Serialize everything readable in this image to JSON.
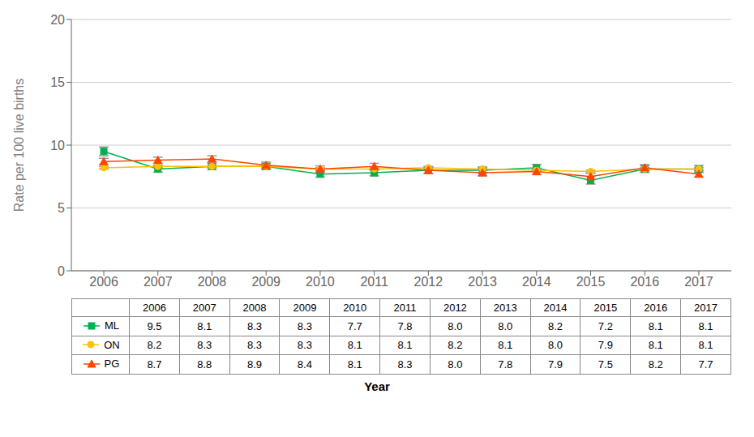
{
  "chart_data": {
    "type": "line",
    "xlabel": "Year",
    "ylabel": "Rate per 100 live births",
    "x": [
      2006,
      2007,
      2008,
      2009,
      2010,
      2011,
      2012,
      2013,
      2014,
      2015,
      2016,
      2017
    ],
    "xlim": [
      2005.4,
      2017.6
    ],
    "xticks": [
      2006,
      2007,
      2008,
      2009,
      2010,
      2011,
      2012,
      2013,
      2014,
      2015,
      2016,
      2017
    ],
    "ylim": [
      0,
      20
    ],
    "yticks": [
      0,
      5,
      10,
      15,
      20
    ],
    "grid": true,
    "legend": "bottom",
    "data_labels": true,
    "series": [
      {
        "name": "ML",
        "color": "#00b050",
        "marker": "square",
        "values": [
          9.5,
          8.1,
          8.3,
          8.3,
          7.7,
          7.8,
          8.0,
          8.0,
          8.2,
          7.2,
          8.1,
          8.1
        ],
        "value_labels": [
          "9.5",
          "8.1",
          "8.3",
          "8.3",
          "7.7",
          "7.8",
          "8.0",
          "8.0",
          "8.2",
          "7.2",
          "8.1",
          "8.1"
        ],
        "errors": [
          0.35,
          0.25,
          0.25,
          0.25,
          0.25,
          0.25,
          0.25,
          0.25,
          0.25,
          0.3,
          0.28,
          0.28
        ]
      },
      {
        "name": "ON",
        "color": "#ffc000",
        "marker": "circle",
        "values": [
          8.2,
          8.3,
          8.3,
          8.3,
          8.1,
          8.1,
          8.2,
          8.1,
          8.0,
          7.9,
          8.1,
          8.1
        ],
        "value_labels": [
          "8.2",
          "8.3",
          "8.3",
          "8.3",
          "8.1",
          "8.1",
          "8.2",
          "8.1",
          "8.0",
          "7.9",
          "8.1",
          "8.1"
        ],
        "errors": [
          0.1,
          0.1,
          0.1,
          0.1,
          0.1,
          0.1,
          0.1,
          0.1,
          0.1,
          0.1,
          0.1,
          0.1
        ]
      },
      {
        "name": "PG",
        "color": "#ff4500",
        "marker": "triangle",
        "values": [
          8.7,
          8.8,
          8.9,
          8.4,
          8.1,
          8.3,
          8.0,
          7.8,
          7.9,
          7.5,
          8.2,
          7.7
        ],
        "value_labels": [
          "8.7",
          "8.8",
          "8.9",
          "8.4",
          "8.1",
          "8.3",
          "8.0",
          "7.8",
          "7.9",
          "7.5",
          "8.2",
          "7.7"
        ],
        "errors": [
          0.25,
          0.25,
          0.25,
          0.25,
          0.25,
          0.25,
          0.25,
          0.25,
          0.25,
          0.25,
          0.25,
          0.25
        ]
      }
    ]
  }
}
